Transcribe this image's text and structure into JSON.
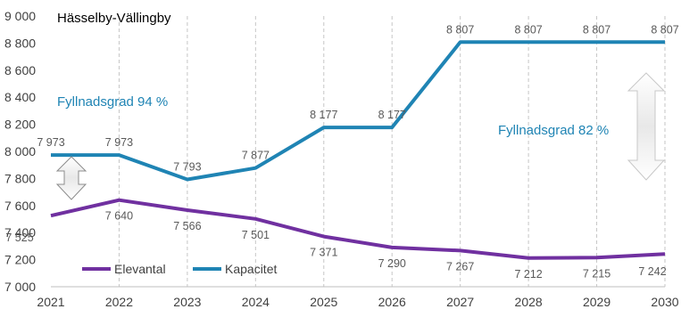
{
  "chart_data": {
    "type": "line",
    "title": "Hässelby-Vällingby",
    "x": [
      2021,
      2022,
      2023,
      2024,
      2025,
      2026,
      2027,
      2028,
      2029,
      2030
    ],
    "x_tick_labels": [
      "2021",
      "2022",
      "2023",
      "2024",
      "2025",
      "2026",
      "2027",
      "2028",
      "2029",
      "2030"
    ],
    "y_tick_labels": [
      "7 000",
      "7 200",
      "7 400",
      "7 600",
      "7 800",
      "8 000",
      "8 200",
      "8 400",
      "8 600",
      "8 800",
      "9 000"
    ],
    "ylim": [
      7000,
      9000
    ],
    "ystep": 200,
    "grid": "vertical dashed",
    "legend": "bottom-left inside plot",
    "series": [
      {
        "name": "Elevantal",
        "color": "#7030a0",
        "values": [
          7525,
          7640,
          7566,
          7501,
          7371,
          7290,
          7267,
          7212,
          7215,
          7242
        ],
        "value_labels": [
          "7 525",
          "7 640",
          "7 566",
          "7 501",
          "7 371",
          "7 290",
          "7 267",
          "7 212",
          "7 215",
          "7 242"
        ]
      },
      {
        "name": "Kapacitet",
        "color": "#1f84b4",
        "values": [
          7973,
          7973,
          7793,
          7877,
          8177,
          8177,
          8807,
          8807,
          8807,
          8807
        ],
        "value_labels": [
          "7 973",
          "7 973",
          "7 793",
          "7 877",
          "8 177",
          "8 177",
          "8 807",
          "8 807",
          "8 807",
          "8 807"
        ]
      }
    ],
    "annotations": [
      {
        "text": "Fyllnadsgrad 94 %",
        "color": "#1f84b4",
        "icon": "double-arrow-icon"
      },
      {
        "text": "Fyllnadsgrad 82 %",
        "color": "#1f84b4",
        "icon": "double-arrow-icon"
      }
    ]
  }
}
